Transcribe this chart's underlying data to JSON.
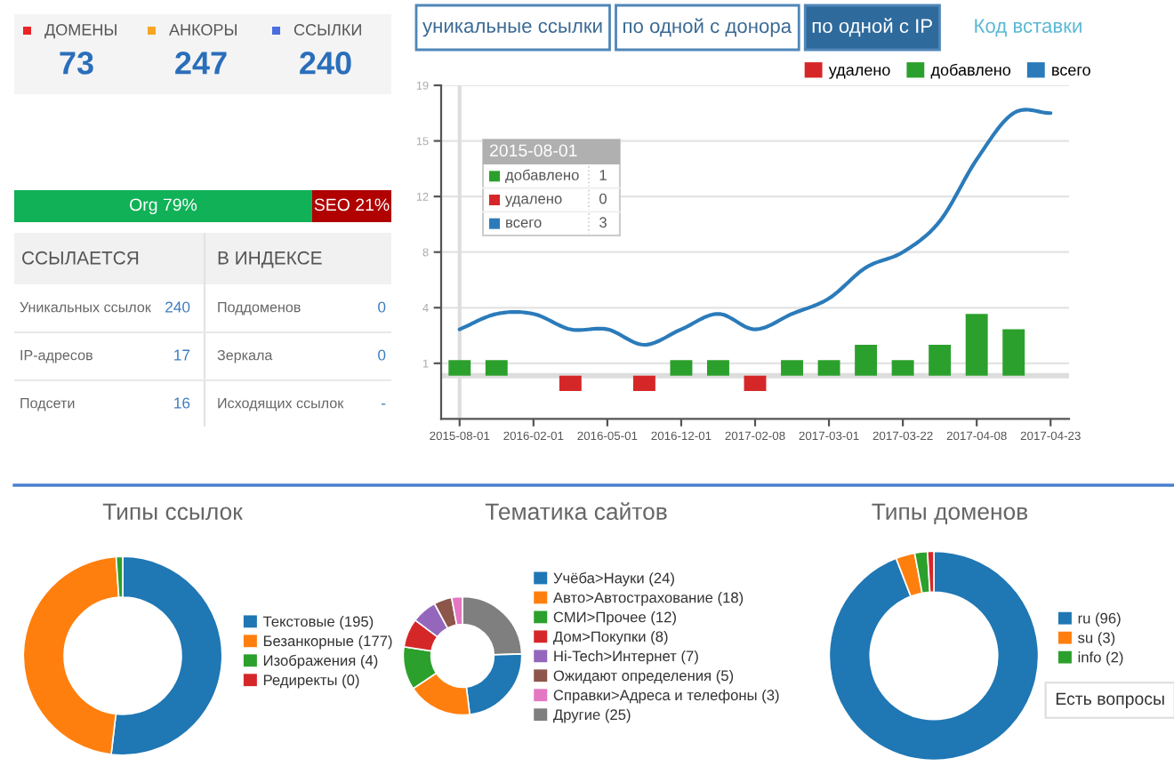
{
  "chart_data": [
    {
      "type": "other",
      "annotations": [
        "ДОМЕНЫ",
        "73",
        "АНКОРЫ",
        "247",
        "ССЫЛКИ",
        "240"
      ],
      "colors": [
        "#e8262a",
        "#f5a623",
        "#4a6ee0"
      ]
    },
    {
      "type": "bar",
      "orientation": "horizontal",
      "stacked": true,
      "categories": [
        null
      ],
      "series": [
        {
          "color": "#10b157",
          "values": [
            79
          ],
          "value_labels": [
            "Org 79%"
          ]
        },
        {
          "color": "#b00000",
          "values": [
            21
          ],
          "value_labels": [
            "SEO 21%"
          ]
        }
      ],
      "xlim": [
        0,
        100
      ],
      "tick_labels": false
    },
    {
      "type": "other",
      "annotations": [
        "ССЫЛАЕТСЯ",
        "В ИНДЕКСЕ",
        "Уникальных ссылок",
        "240",
        "IP-адресов",
        "17",
        "Подсети",
        "16",
        "Поддоменов",
        "0",
        "Зеркала",
        "0",
        "Исходящих ссылок",
        "-"
      ]
    },
    {
      "type": "other",
      "annotations": [
        "уникальные ссылки",
        "по одной с донора",
        "по одной с IP",
        "Код вставки"
      ]
    },
    {
      "type": "bar",
      "categories": [
        "2015-08-01",
        null,
        "2016-02-01",
        null,
        "2016-05-01",
        null,
        "2016-12-01",
        null,
        "2017-02-08",
        null,
        "2017-03-01",
        null,
        "2017-03-22",
        null,
        "2017-04-08",
        null,
        "2017-04-23"
      ],
      "series": [
        {
          "name": "удалено",
          "color": "#d62728",
          "values": [
            0,
            0,
            0,
            -1,
            0,
            -1,
            0,
            0,
            -1,
            0,
            0,
            0,
            0,
            0,
            0,
            0,
            0
          ]
        },
        {
          "name": "добавлено",
          "color": "#2ca02c",
          "values": [
            1,
            1,
            0,
            0,
            0,
            0,
            1,
            1,
            0,
            1,
            1,
            2,
            1,
            2,
            4,
            3,
            0
          ]
        },
        {
          "name": "всего",
          "type": "line",
          "color": "#2b7bba",
          "values": [
            3,
            4,
            4,
            3,
            3,
            2,
            3,
            4,
            3,
            4,
            5,
            7,
            8,
            10,
            14,
            17,
            17
          ]
        }
      ],
      "ylim": [
        -2.8,
        18.8
      ],
      "yticks": [
        {
          "value": 0.8,
          "label": "1"
        },
        {
          "value": 4.4,
          "label": "4"
        },
        {
          "value": 8,
          "label": "8"
        },
        {
          "value": 11.6,
          "label": "12"
        },
        {
          "value": 15.2,
          "label": "15"
        },
        {
          "value": 18.8,
          "label": "19"
        }
      ],
      "grid": "y",
      "legend": "top right",
      "ref_lines": [
        {
          "axis": "y",
          "value": 0,
          "color": "#dddddd"
        },
        {
          "axis": "x",
          "value": "2015-08-01",
          "color": "#dddddd"
        }
      ]
    },
    {
      "type": "other",
      "annotations": [
        "2015-08-01",
        "добавлено",
        "1",
        "удалено",
        "0",
        "всего",
        "3"
      ],
      "colors": [
        "#2ca02c",
        "#d62728",
        "#2b7bba"
      ]
    },
    {
      "type": "donut",
      "title": "Типы ссылок",
      "categories": [
        "Текстовые (195)",
        "Безанкорные (177)",
        "Изображения (4)",
        "Редиректы (0)"
      ],
      "values": [
        195,
        177,
        4,
        0
      ],
      "colors": [
        "#1f77b4",
        "#ff7f0e",
        "#2ca02c",
        "#d62728"
      ],
      "legend": "right"
    },
    {
      "type": "donut",
      "title": "Тематика сайтов",
      "categories": [
        "Учёба>Науки (24)",
        "Авто>Автострахование (18)",
        "СМИ>Прочее (12)",
        "Дом>Покупки (8)",
        "Hi-Tech>Интернет (7)",
        "Ожидают определения (5)",
        "Справки>Адреса и телефоны (3)",
        "Другие (25)"
      ],
      "values": [
        24,
        18,
        12,
        8,
        7,
        5,
        3,
        25
      ],
      "colors": [
        "#1f77b4",
        "#ff7f0e",
        "#2ca02c",
        "#d62728",
        "#9467bd",
        "#8c564b",
        "#e377c2",
        "#7f7f7f"
      ],
      "legend": "right"
    },
    {
      "type": "donut",
      "title": "Типы доменов",
      "categories": [
        "ru (96)",
        "su (3)",
        "info (2)",
        null
      ],
      "values": [
        96,
        3,
        2,
        1
      ],
      "colors": [
        "#1f77b4",
        "#ff7f0e",
        "#2ca02c",
        "#d62728"
      ],
      "legend": "right",
      "annotations": [
        "Есть вопросы"
      ]
    }
  ]
}
